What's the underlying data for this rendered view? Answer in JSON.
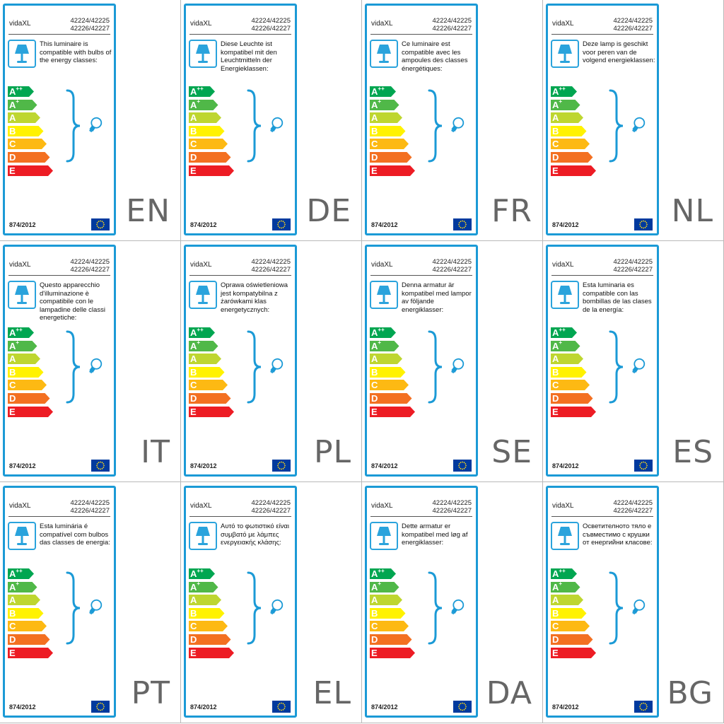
{
  "common": {
    "brand": "vidaXL",
    "model_line1": "42224/42225",
    "model_line2": "42226/42227",
    "regulation": "874/2012",
    "energy_classes": [
      {
        "letter": "A",
        "sup": "++",
        "color": "#00a651"
      },
      {
        "letter": "A",
        "sup": "+",
        "color": "#50b848"
      },
      {
        "letter": "A",
        "sup": "",
        "color": "#bed630"
      },
      {
        "letter": "B",
        "sup": "",
        "color": "#fff200"
      },
      {
        "letter": "C",
        "sup": "",
        "color": "#fdb913"
      },
      {
        "letter": "D",
        "sup": "",
        "color": "#f37021"
      },
      {
        "letter": "E",
        "sup": "",
        "color": "#ed1c24"
      }
    ],
    "accent_color": "#1b9ad6",
    "icons": [
      "table-lamp-icon",
      "bracket-icon",
      "light-bulb-icon",
      "eu-flag-icon"
    ]
  },
  "labels": [
    {
      "lang": "EN",
      "text": "This luminaire is compatible with bulbs of the energy classes:"
    },
    {
      "lang": "DE",
      "text": "Diese Leuchte ist kompatibel mit den Leuchtmitteln der Energieklassen:"
    },
    {
      "lang": "FR",
      "text": "Ce luminaire est compatible avec les ampoules des classes énergétiques:"
    },
    {
      "lang": "NL",
      "text": "Deze lamp is geschikt voor peren van de volgend energieklassen:"
    },
    {
      "lang": "IT",
      "text": "Questo apparecchio d'illuminazione è compatibile con le lampadine delle classi energetiche:"
    },
    {
      "lang": "PL",
      "text": "Oprawa oświetleniowa jest kompatybilna z żarówkami klas energetycznych:"
    },
    {
      "lang": "SE",
      "text": "Denna armatur är kompatibel med lampor av följande energiklasser:"
    },
    {
      "lang": "ES",
      "text": "Esta luminaria es compatible con las bombillas de las clases de la energía:"
    },
    {
      "lang": "PT",
      "text": "Esta luminária é compatível com bulbos das classes de energia:"
    },
    {
      "lang": "EL",
      "text": "Αυτό το φωτιστικό είναι συμβατό με λάμπες ενεργειακής κλάσης:"
    },
    {
      "lang": "DA",
      "text": "Dette armatur er kompatibel med løg af energiklasser:"
    },
    {
      "lang": "BG",
      "text": "Осветителното тяло е съвместимо с крушки от енергийни класове:"
    }
  ]
}
